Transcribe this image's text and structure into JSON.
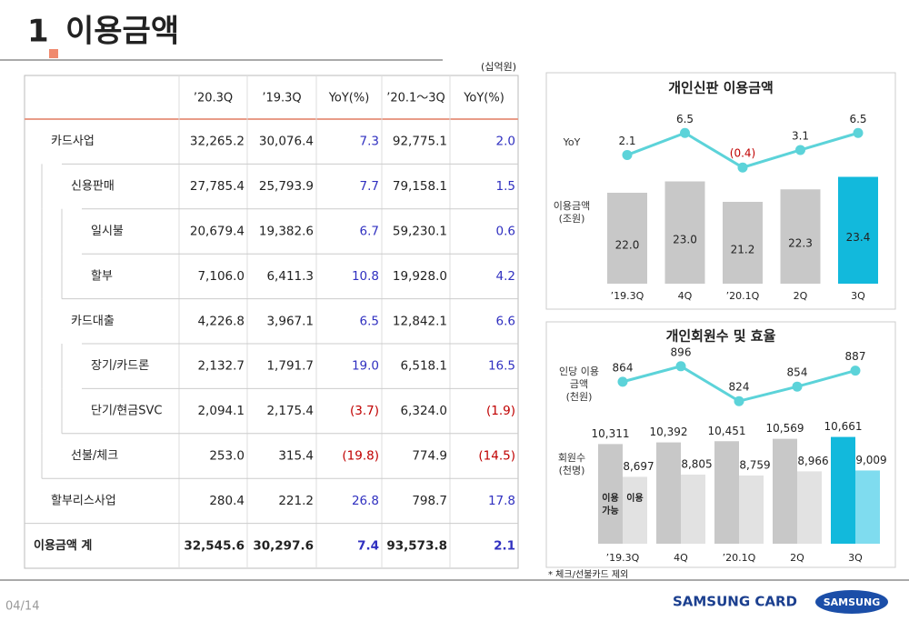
{
  "header": {
    "number": "1",
    "title": "이용금액"
  },
  "table": {
    "unit": "(십억원)",
    "columns": [
      "’20.3Q",
      "’19.3Q",
      "YoY(%)",
      "’20.1～3Q",
      "YoY(%)"
    ],
    "rows": [
      [
        "카드사업",
        "32,265.2",
        "30,076.4",
        "7.3",
        "92,775.1",
        "2.0"
      ],
      [
        "신용판매",
        "27,785.4",
        "25,793.9",
        "7.7",
        "79,158.1",
        "1.5"
      ],
      [
        "일시불",
        "20,679.4",
        "19,382.6",
        "6.7",
        "59,230.1",
        "0.6"
      ],
      [
        "할부",
        "7,106.0",
        "6,411.3",
        "10.8",
        "19,928.0",
        "4.2"
      ],
      [
        "카드대출",
        "4,226.8",
        "3,967.1",
        "6.5",
        "12,842.1",
        "6.6"
      ],
      [
        "장기/카드론",
        "2,132.7",
        "1,791.7",
        "19.0",
        "6,518.1",
        "16.5"
      ],
      [
        "단기/현금SVC",
        "2,094.1",
        "2,175.4",
        "(3.7)",
        "6,324.0",
        "(1.9)"
      ],
      [
        "선불/체크",
        "253.0",
        "315.4",
        "(19.8)",
        "774.9",
        "(14.5)"
      ],
      [
        "할부리스사업",
        "280.4",
        "221.2",
        "26.8",
        "798.7",
        "17.8"
      ],
      [
        "이용금액 계",
        "32,545.6",
        "30,297.6",
        "7.4",
        "93,573.8",
        "2.1"
      ]
    ]
  },
  "chart_data": [
    {
      "type": "combo",
      "title": "개인신판 이용금액",
      "categories": [
        "’19.3Q",
        "4Q",
        "’20.1Q",
        "2Q",
        "3Q"
      ],
      "ylim": [
        14,
        24
      ],
      "y2lim": [
        -2,
        8
      ],
      "negative_color": "#c00000",
      "series": [
        {
          "name": "YoY",
          "type": "line",
          "axis": "y2",
          "color": "#5cd3d9",
          "values": [
            2.1,
            6.5,
            -0.4,
            3.1,
            6.5
          ],
          "value_labels": [
            "2.1",
            "6.5",
            "(0.4)",
            "3.1",
            "6.5"
          ]
        },
        {
          "name": "이용금액",
          "unit": "(조원)",
          "type": "bar",
          "colors": [
            "#c8c8c8",
            "#c8c8c8",
            "#c8c8c8",
            "#c8c8c8",
            "#12b9dc"
          ],
          "values": [
            22.0,
            23.0,
            21.2,
            22.3,
            23.4
          ],
          "value_labels": [
            "22.0",
            "23.0",
            "21.2",
            "22.3",
            "23.4"
          ]
        }
      ]
    },
    {
      "type": "combo",
      "title": "개인회원수 및 효율",
      "categories": [
        "’19.3Q",
        "4Q",
        "’20.1Q",
        "2Q",
        "3Q"
      ],
      "ylim": [
        5400,
        11000
      ],
      "y2lim": [
        800,
        920
      ],
      "bar_group_label": "회원수",
      "bar_group_unit": "(천명)",
      "series": [
        {
          "name": "인당 이용금액",
          "unit": "(천원)",
          "type": "line",
          "axis": "y2",
          "color": "#5cd3d9",
          "values": [
            864,
            896,
            824,
            854,
            887
          ]
        },
        {
          "name": "이용 가능",
          "type": "bar",
          "colors": [
            "#c8c8c8",
            "#c8c8c8",
            "#c8c8c8",
            "#c8c8c8",
            "#12b9dc"
          ],
          "values": [
            10311,
            10392,
            10451,
            10569,
            10661
          ],
          "value_labels": [
            "10,311",
            "10,392",
            "10,451",
            "10,569",
            "10,661"
          ]
        },
        {
          "name": "이용",
          "type": "bar",
          "colors": [
            "#e2e2e2",
            "#e2e2e2",
            "#e2e2e2",
            "#e2e2e2",
            "#7fdcef"
          ],
          "values": [
            8697,
            8805,
            8759,
            8966,
            9009
          ],
          "value_labels": [
            "8,697",
            "8,805",
            "8,759",
            "8,966",
            "9,009"
          ]
        }
      ]
    }
  ],
  "footnote": "* 체크/선불카드 제외",
  "footer": {
    "page": "04/14",
    "brand": "SAMSUNG CARD",
    "logo": "SAMSUNG"
  }
}
